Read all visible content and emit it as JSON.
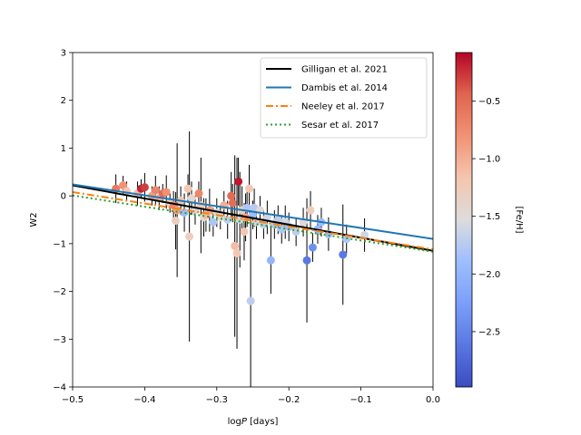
{
  "chart_data": {
    "type": "scatter",
    "xlabel_prefix": "log",
    "xlabel_var": "P",
    "xlabel_unit": "[days]",
    "ylabel": "W2",
    "xlim": [
      -0.5,
      0.0
    ],
    "ylim": [
      -4,
      3
    ],
    "xticks": [
      -0.5,
      -0.4,
      -0.3,
      -0.2,
      -0.1,
      0.0
    ],
    "xtick_labels": [
      "−0.5",
      "−0.4",
      "−0.3",
      "−0.2",
      "−0.1",
      "0.0"
    ],
    "yticks": [
      3,
      2,
      1,
      0,
      -1,
      -2,
      -3,
      -4
    ],
    "ytick_labels": [
      "3",
      "2",
      "1",
      "0",
      "−1",
      "−2",
      "−3",
      "−4"
    ],
    "colorbar": {
      "label": "[Fe/H]",
      "range": [
        -2.98,
        -0.08
      ],
      "ticks": [
        -0.5,
        -1.0,
        -1.5,
        -2.0,
        -2.5
      ],
      "tick_labels": [
        "−0.5",
        "−1.0",
        "−1.5",
        "−2.0",
        "−2.5"
      ],
      "colormap": "coolwarm"
    },
    "legend": {
      "position": "top-right",
      "entries": [
        {
          "label": "Gilligan et al. 2021",
          "color": "#000000",
          "dash": "solid"
        },
        {
          "label": "Dambis et al. 2014",
          "color": "#1f77b4",
          "dash": "solid"
        },
        {
          "label": "Neeley et al. 2017",
          "color": "#ff7f0e",
          "dash": "dashdot"
        },
        {
          "label": "Sesar et al. 2017",
          "color": "#2ca02c",
          "dash": "dotted"
        }
      ]
    },
    "lines": [
      {
        "name": "Gilligan et al. 2021",
        "color": "#000000",
        "dash": "solid",
        "x": [
          -0.5,
          0.0
        ],
        "y": [
          0.22,
          -1.15
        ]
      },
      {
        "name": "Dambis et al. 2014",
        "color": "#1f77b4",
        "dash": "solid",
        "x": [
          -0.5,
          0.0
        ],
        "y": [
          0.24,
          -0.9
        ]
      },
      {
        "name": "Neeley et al. 2017",
        "color": "#ff7f0e",
        "dash": "dashdot",
        "x": [
          -0.5,
          0.0
        ],
        "y": [
          0.08,
          -1.12
        ]
      },
      {
        "name": "Sesar et al. 2017",
        "color": "#2ca02c",
        "dash": "dotted",
        "x": [
          -0.5,
          0.0
        ],
        "y": [
          0.01,
          -1.17
        ]
      }
    ],
    "points": [
      {
        "x": -0.44,
        "y": 0.15,
        "err": 0.3,
        "feh": -0.6
      },
      {
        "x": -0.43,
        "y": 0.22,
        "err": 0.2,
        "feh": -0.8
      },
      {
        "x": -0.425,
        "y": 0.1,
        "err": 0.2,
        "feh": -1.2
      },
      {
        "x": -0.41,
        "y": 0.05,
        "err": 0.25,
        "feh": -1.1
      },
      {
        "x": -0.405,
        "y": 0.15,
        "err": 0.2,
        "feh": -0.2
      },
      {
        "x": -0.4,
        "y": 0.18,
        "err": 0.3,
        "feh": -0.3
      },
      {
        "x": -0.39,
        "y": 0.0,
        "err": 0.2,
        "feh": -0.9
      },
      {
        "x": -0.385,
        "y": 0.12,
        "err": 0.3,
        "feh": -0.7
      },
      {
        "x": -0.38,
        "y": -0.05,
        "err": 0.25,
        "feh": -1.0
      },
      {
        "x": -0.375,
        "y": 0.05,
        "err": 0.2,
        "feh": -0.5
      },
      {
        "x": -0.37,
        "y": 0.08,
        "err": 0.35,
        "feh": -0.8
      },
      {
        "x": -0.365,
        "y": -0.15,
        "err": 0.2,
        "feh": -1.3
      },
      {
        "x": -0.36,
        "y": -0.2,
        "err": 0.3,
        "feh": -0.7
      },
      {
        "x": -0.357,
        "y": -0.52,
        "err": 0.6,
        "feh": -1.3
      },
      {
        "x": -0.355,
        "y": -0.3,
        "err": 1.4,
        "feh": -0.9
      },
      {
        "x": -0.35,
        "y": -0.1,
        "err": 0.3,
        "feh": -1.2
      },
      {
        "x": -0.345,
        "y": -0.35,
        "err": 0.4,
        "feh": -1.9
      },
      {
        "x": -0.34,
        "y": 0.15,
        "err": 0.3,
        "feh": -1.2
      },
      {
        "x": -0.338,
        "y": -0.85,
        "err": 2.2,
        "feh": -1.3
      },
      {
        "x": -0.335,
        "y": -0.05,
        "err": 0.35,
        "feh": -1.4
      },
      {
        "x": -0.33,
        "y": -0.3,
        "err": 0.3,
        "feh": -1.6
      },
      {
        "x": -0.325,
        "y": 0.05,
        "err": 0.25,
        "feh": -0.7
      },
      {
        "x": -0.322,
        "y": -0.2,
        "err": 1.0,
        "feh": -1.2
      },
      {
        "x": -0.318,
        "y": -0.45,
        "err": 0.4,
        "feh": -1.5
      },
      {
        "x": -0.315,
        "y": -0.4,
        "err": 0.35,
        "feh": -1.1
      },
      {
        "x": -0.31,
        "y": -0.3,
        "err": 0.45,
        "feh": -0.9
      },
      {
        "x": -0.305,
        "y": -0.55,
        "err": 0.3,
        "feh": -1.8
      },
      {
        "x": -0.3,
        "y": -0.35,
        "err": 0.3,
        "feh": -1.6
      },
      {
        "x": -0.295,
        "y": -0.45,
        "err": 0.25,
        "feh": -1.5
      },
      {
        "x": -0.29,
        "y": -0.2,
        "err": 0.3,
        "feh": -1.0
      },
      {
        "x": -0.285,
        "y": -0.5,
        "err": 0.4,
        "feh": -1.7
      },
      {
        "x": -0.28,
        "y": 0.0,
        "err": 0.5,
        "feh": -0.5
      },
      {
        "x": -0.278,
        "y": -0.15,
        "err": 0.4,
        "feh": -0.5
      },
      {
        "x": -0.275,
        "y": -1.05,
        "err": 1.9,
        "feh": -1.1
      },
      {
        "x": -0.272,
        "y": -1.2,
        "err": 2.0,
        "feh": -1.2
      },
      {
        "x": -0.27,
        "y": 0.3,
        "err": 0.5,
        "feh": -0.15
      },
      {
        "x": -0.268,
        "y": -0.5,
        "err": 1.0,
        "feh": -1.6
      },
      {
        "x": -0.265,
        "y": -0.3,
        "err": 0.5,
        "feh": -1.3
      },
      {
        "x": -0.262,
        "y": -0.75,
        "err": 0.6,
        "feh": -1.2
      },
      {
        "x": -0.26,
        "y": -0.45,
        "err": 0.5,
        "feh": -0.9
      },
      {
        "x": -0.258,
        "y": -0.25,
        "err": 0.4,
        "feh": -1.8
      },
      {
        "x": -0.255,
        "y": 0.15,
        "err": 0.5,
        "feh": -1.2
      },
      {
        "x": -0.253,
        "y": -2.2,
        "err": 1.9,
        "feh": -1.7
      },
      {
        "x": -0.25,
        "y": -0.4,
        "err": 0.3,
        "feh": -1.9
      },
      {
        "x": -0.248,
        "y": -0.25,
        "err": 0.4,
        "feh": -1.75
      },
      {
        "x": -0.245,
        "y": -0.55,
        "err": 0.35,
        "feh": -1.6
      },
      {
        "x": -0.24,
        "y": -0.3,
        "err": 0.3,
        "feh": -1.5
      },
      {
        "x": -0.235,
        "y": -0.6,
        "err": 0.3,
        "feh": -1.7
      },
      {
        "x": -0.23,
        "y": -0.45,
        "err": 0.35,
        "feh": -1.6
      },
      {
        "x": -0.225,
        "y": -1.35,
        "err": 0.7,
        "feh": -2.0
      },
      {
        "x": -0.22,
        "y": -0.6,
        "err": 0.3,
        "feh": -1.8
      },
      {
        "x": -0.215,
        "y": -0.5,
        "err": 0.3,
        "feh": -1.7
      },
      {
        "x": -0.21,
        "y": -0.7,
        "err": 0.3,
        "feh": -1.8
      },
      {
        "x": -0.205,
        "y": -0.55,
        "err": 0.35,
        "feh": -1.6
      },
      {
        "x": -0.2,
        "y": -0.65,
        "err": 0.3,
        "feh": -1.9
      },
      {
        "x": -0.19,
        "y": -0.75,
        "err": 0.3,
        "feh": -1.7
      },
      {
        "x": -0.18,
        "y": -0.55,
        "err": 0.3,
        "feh": -1.5
      },
      {
        "x": -0.175,
        "y": -1.35,
        "err": 1.3,
        "feh": -2.6
      },
      {
        "x": -0.17,
        "y": -0.3,
        "err": 0.4,
        "feh": -1.3
      },
      {
        "x": -0.167,
        "y": -1.08,
        "err": 0.3,
        "feh": -2.4
      },
      {
        "x": -0.16,
        "y": -0.7,
        "err": 0.3,
        "feh": -2.0
      },
      {
        "x": -0.155,
        "y": -0.55,
        "err": 0.3,
        "feh": -1.9
      },
      {
        "x": -0.145,
        "y": -0.8,
        "err": 0.35,
        "feh": -1.9
      },
      {
        "x": -0.125,
        "y": -1.23,
        "err": 1.05,
        "feh": -2.6
      },
      {
        "x": -0.12,
        "y": -0.9,
        "err": 0.3,
        "feh": -1.8
      },
      {
        "x": -0.095,
        "y": -0.82,
        "err": 0.35,
        "feh": -1.6
      }
    ]
  }
}
